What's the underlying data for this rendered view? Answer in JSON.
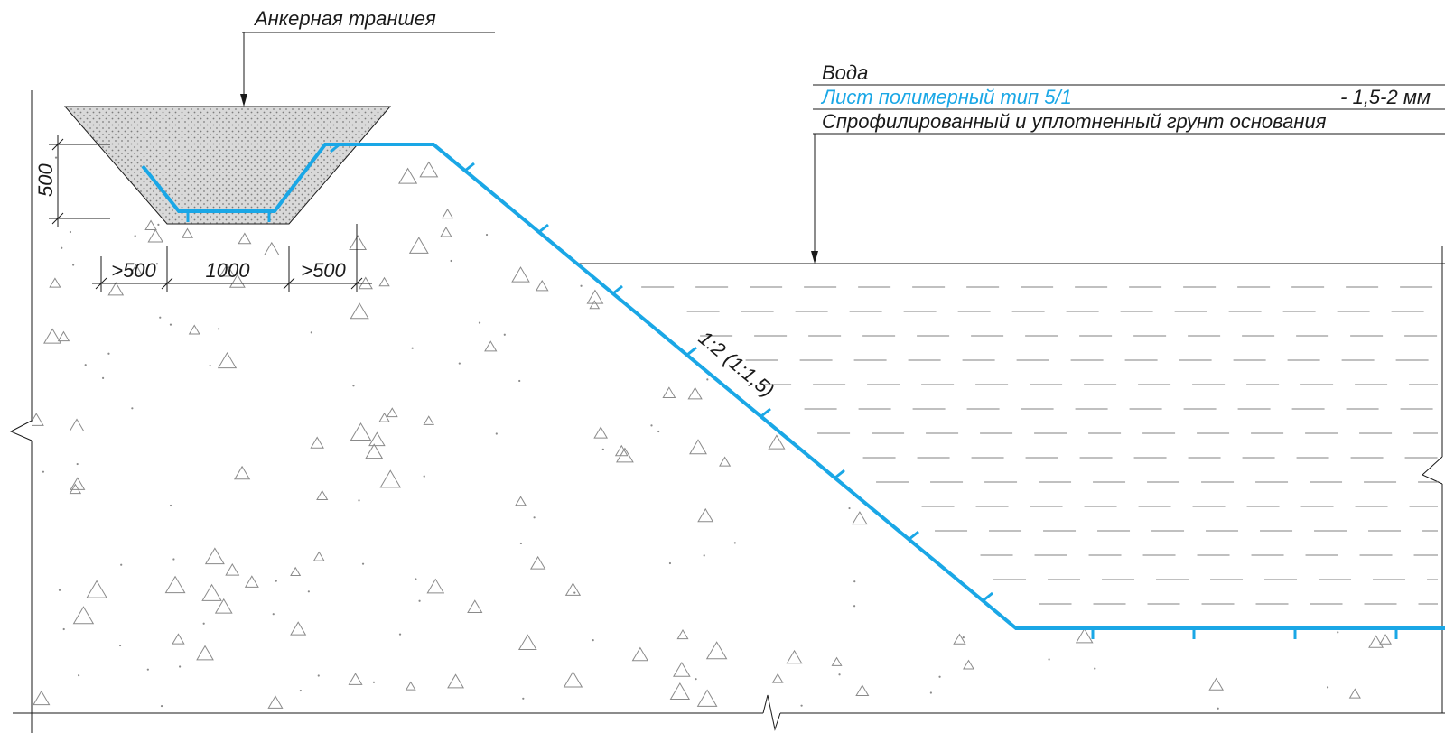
{
  "colors": {
    "membrane": "#1aa7e6",
    "line": "#1a1a1a",
    "soil_symbol": "#8a8a8a",
    "trench_fill": "#d9d9d9",
    "water_dash": "#9a9a9a"
  },
  "labels": {
    "anchor_trench": "Анкерная траншея",
    "water": "Вода",
    "sheet": "Лист полимерный тип 5/1",
    "sheet_thickness": "- 1,5-2 мм",
    "base_soil": "Спрофилированный и уплотненный грунт основания",
    "slope": "1:2 (1:1,5)"
  },
  "dimensions": {
    "trench_depth": "500",
    "left_offset": ">500",
    "trench_bottom_width": "1000",
    "right_offset": ">500"
  }
}
